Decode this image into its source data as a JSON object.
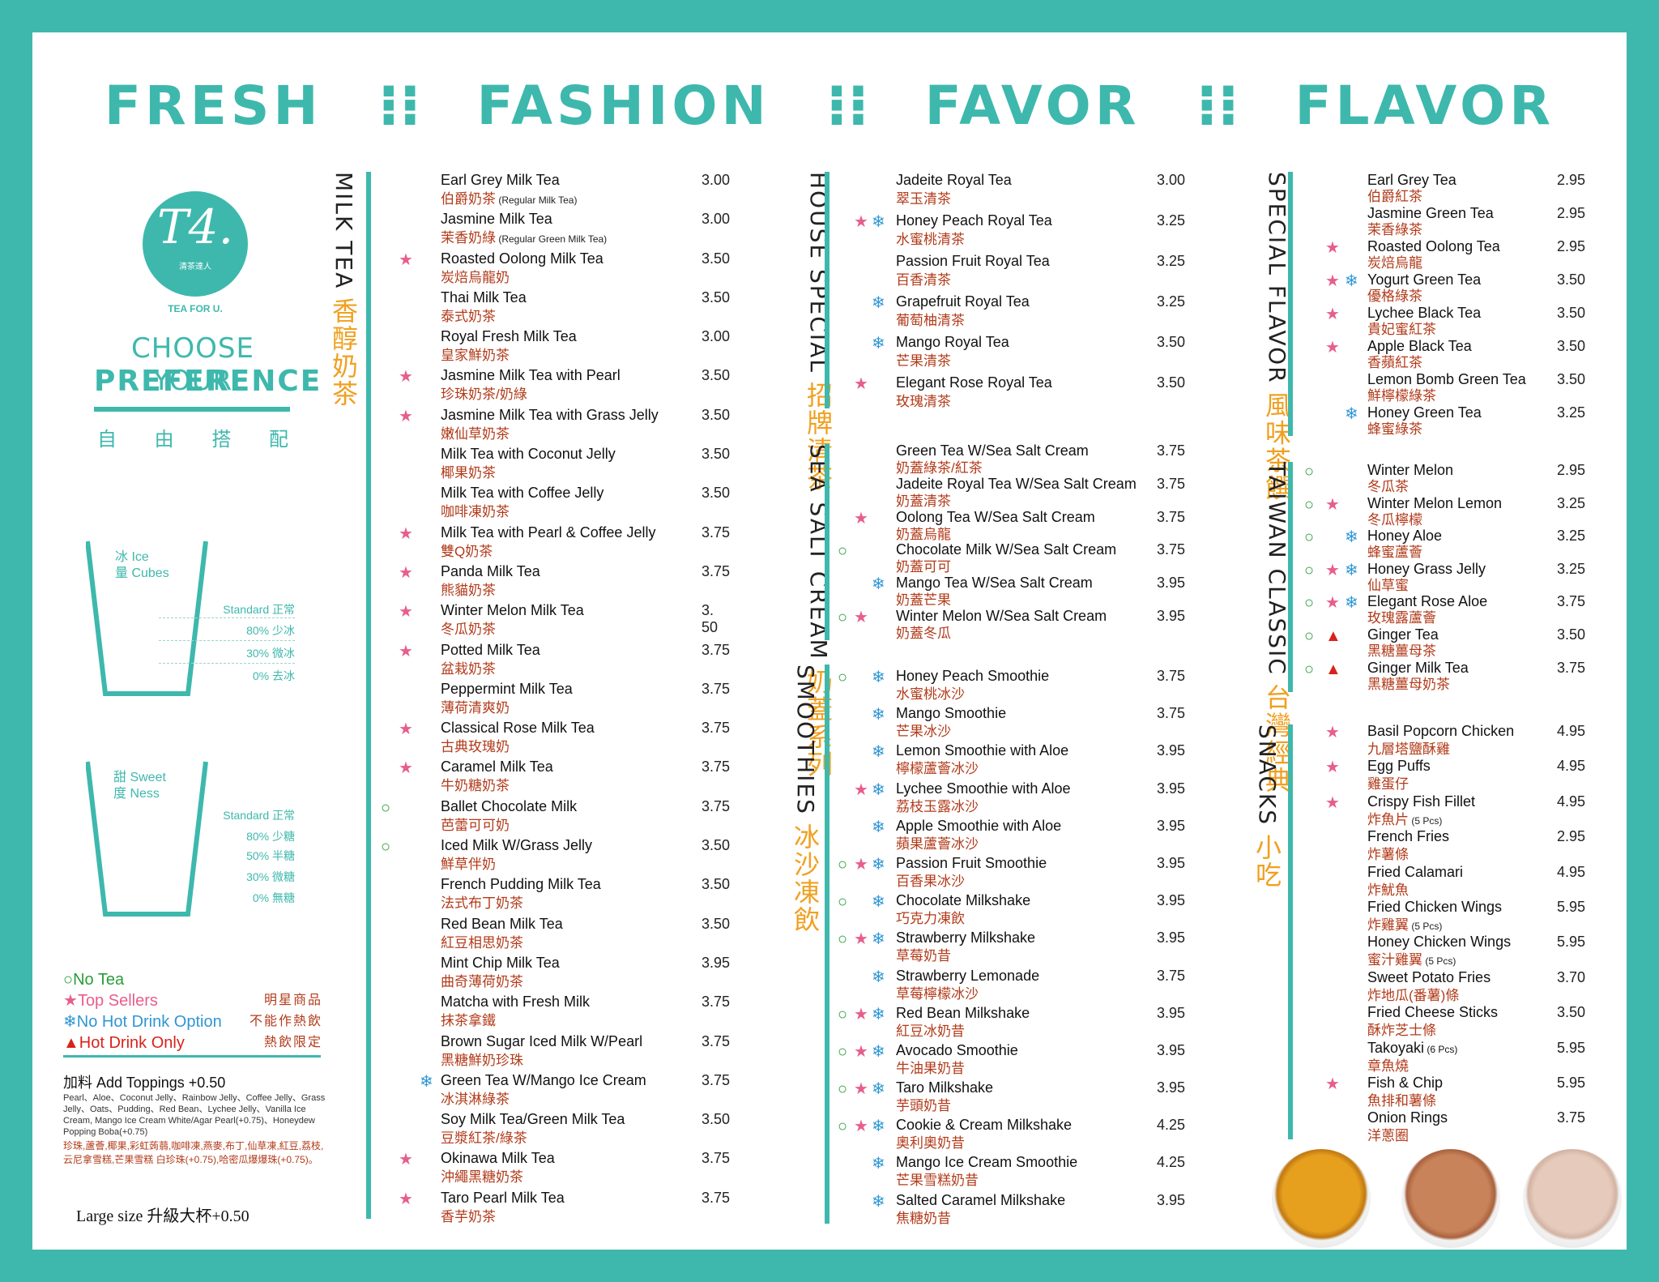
{
  "header": {
    "w1": "FRESH",
    "w2": "FASHION",
    "w3": "FAVOR",
    "w4": "FLAVOR",
    "sep": "⁝⁝"
  },
  "brand": {
    "logo": "T4.",
    "logo_zh": "清茶達人",
    "tea_for": "TEA FOR U.",
    "choose1": "CHOOSE YOUR",
    "choose2": "PREFERENCE",
    "free": [
      "自",
      "由",
      "搭",
      "配"
    ]
  },
  "ice": {
    "label1": "冰 Ice",
    "label2": "量 Cubes",
    "levels": [
      "Standard 正常",
      "80% 少冰",
      "30% 微冰",
      "0% 去冰"
    ]
  },
  "sweet": {
    "label1": "甜 Sweet",
    "label2": "度 Ness",
    "levels": [
      "Standard 正常",
      "80% 少糖",
      "50% 半糖",
      "30% 微糖",
      "0% 無糖"
    ]
  },
  "legend": [
    {
      "icon": "○",
      "cls": "c-o",
      "text": "No Tea",
      "zh": ""
    },
    {
      "icon": "★",
      "cls": "c-s",
      "text": "Top Sellers",
      "zh": "明星商品"
    },
    {
      "icon": "❄",
      "cls": "c-n",
      "text": "No Hot Drink Option",
      "zh": "不能作熱飲"
    },
    {
      "icon": "▲",
      "cls": "c-h",
      "text": "Hot Drink Only",
      "zh": "熱飲限定"
    }
  ],
  "toppings": {
    "title": "加料 Add Toppings +0.50",
    "en": "Pearl、Aloe、Coconut Jelly、Rainbow Jelly、Coffee Jelly、Grass Jelly、Oats、Pudding、Red Bean、Lychee Jelly、Vanilla Ice Cream, Mango Ice Cream White/Agar Pearl(+0.75)、Honeydew Popping Boba(+0.75)",
    "zh": "珍珠,蘆薈,椰果,彩虹蒟蒻,咖啡凍,燕麥,布丁,仙草凍,紅豆,荔枝,云尼拿雪糕,芒果雪糕 白珍珠(+0.75),哈密瓜爆爆珠(+0.75)。"
  },
  "large": "Large size 升級大杯+0.50",
  "titles": {
    "milk_en": "MILK TEA",
    "milk_zh": "香醇奶茶",
    "house_en": "HOUSE SPECIAL",
    "house_zh": "招牌清茶",
    "salt_en": "SEA SALT CREAM",
    "salt_zh": "奶蓋系列",
    "smooth_en": "SMOOTHIES",
    "smooth_zh": "冰沙凍飲",
    "flavor_en": "SPECIAL FLAVOR",
    "flavor_zh": "風味茶饌",
    "taiwan_en": "TAIWAN CLASSIC",
    "taiwan_zh": "台灣經典",
    "snacks_en": "SNACKS",
    "snacks_zh": "小吃"
  },
  "milk": [
    {
      "i": "",
      "n": "Earl Grey Milk Tea",
      "z": "伯爵奶茶",
      "zs": "(Regular Milk Tea)",
      "p": "3.00"
    },
    {
      "i": "",
      "n": "Jasmine Milk Tea",
      "z": "茉香奶綠",
      "zs": "(Regular Green Milk Tea)",
      "p": "3.00"
    },
    {
      "i": "s",
      "n": "Roasted Oolong Milk Tea",
      "z": "炭焙烏龍奶",
      "p": "3.50"
    },
    {
      "i": "",
      "n": "Thai Milk Tea",
      "z": "泰式奶茶",
      "p": "3.50"
    },
    {
      "i": "",
      "n": "Royal Fresh Milk Tea",
      "z": "皇家鮮奶茶",
      "p": "3.00"
    },
    {
      "i": "s",
      "n": "Jasmine Milk Tea with Pearl",
      "z": "珍珠奶茶/奶綠",
      "p": "3.50"
    },
    {
      "i": "s",
      "n": "Jasmine Milk Tea with Grass Jelly",
      "z": "嫩仙草奶茶",
      "p": "3.50"
    },
    {
      "i": "",
      "n": "Milk Tea with Coconut Jelly",
      "z": "椰果奶茶",
      "p": "3.50"
    },
    {
      "i": "",
      "n": "Milk Tea with Coffee Jelly",
      "z": "咖啡凍奶茶",
      "p": "3.50"
    },
    {
      "i": "s",
      "n": "Milk Tea with Pearl & Coffee Jelly",
      "z": "雙Q奶茶",
      "p": "3.75"
    },
    {
      "i": "s",
      "n": "Panda Milk Tea",
      "z": "熊貓奶茶",
      "p": "3.75"
    },
    {
      "i": "s",
      "n": "Winter Melon Milk Tea",
      "z": "冬瓜奶茶",
      "p": "3. 50"
    },
    {
      "i": "s",
      "n": "Potted Milk Tea",
      "z": "盆栽奶茶",
      "p": "3.75"
    },
    {
      "i": "",
      "n": "Peppermint Milk Tea",
      "z": "薄荷清爽奶",
      "p": "3.75"
    },
    {
      "i": "s",
      "n": "Classical Rose Milk Tea",
      "z": "古典玫瑰奶",
      "p": "3.75"
    },
    {
      "i": "s",
      "n": "Caramel Milk Tea",
      "z": "牛奶糖奶茶",
      "p": "3.75"
    },
    {
      "i": "o",
      "n": "Ballet Chocolate Milk",
      "z": "芭蕾可可奶",
      "p": "3.75"
    },
    {
      "i": "o",
      "n": "Iced Milk W/Grass Jelly",
      "z": "鮮草伴奶",
      "p": "3.50"
    },
    {
      "i": "",
      "n": "French Pudding Milk Tea",
      "z": "法式布丁奶茶",
      "p": "3.50"
    },
    {
      "i": "",
      "n": "Red Bean Milk Tea",
      "z": "紅豆相思奶茶",
      "p": "3.50"
    },
    {
      "i": "",
      "n": "Mint Chip Milk Tea",
      "z": "曲奇薄荷奶茶",
      "p": "3.95"
    },
    {
      "i": "",
      "n": "Matcha with Fresh Milk",
      "z": "抹茶拿鐵",
      "p": "3.75"
    },
    {
      "i": "",
      "n": "Brown Sugar Iced Milk W/Pearl",
      "z": "黑糖鮮奶珍珠",
      "p": "3.75"
    },
    {
      "i": "n",
      "n": "Green Tea W/Mango Ice Cream",
      "z": "冰淇淋綠茶",
      "p": "3.75"
    },
    {
      "i": "",
      "n": "Soy Milk Tea/Green Milk Tea",
      "z": "豆漿紅茶/綠茶",
      "p": "3.50"
    },
    {
      "i": "s",
      "n": "Okinawa Milk Tea",
      "z": "沖繩黑糖奶茶",
      "p": "3.75"
    },
    {
      "i": "s",
      "n": "Taro Pearl Milk Tea",
      "z": "香芋奶茶",
      "p": "3.75"
    }
  ],
  "house": [
    {
      "i": "",
      "n": "Jadeite Royal Tea",
      "z": "翠玉清茶",
      "p": "3.00"
    },
    {
      "i": "sn",
      "n": "Honey Peach Royal Tea",
      "z": "水蜜桃清茶",
      "p": "3.25"
    },
    {
      "i": "",
      "n": "Passion Fruit Royal  Tea",
      "z": "百香清茶",
      "p": "3.25"
    },
    {
      "i": "n",
      "n": "Grapefruit Royal Tea",
      "z": "葡萄柚清茶",
      "p": "3.25"
    },
    {
      "i": "n",
      "n": "Mango Royal Tea",
      "z": "芒果清茶",
      "p": "3.50"
    },
    {
      "i": "s",
      "n": "Elegant Rose Royal Tea",
      "z": "玫瑰清茶",
      "p": "3.50"
    }
  ],
  "salt": [
    {
      "i": "",
      "n": "Green Tea W/Sea Salt Cream",
      "z": "奶蓋綠茶/紅茶",
      "p": "3.75"
    },
    {
      "i": "",
      "n": "Jadeite Royal Tea W/Sea Salt Cream",
      "z": "奶蓋清茶",
      "p": "3.75"
    },
    {
      "i": "s",
      "n": "Oolong  Tea W/Sea Salt Cream",
      "z": "奶蓋烏龍",
      "p": "3.75"
    },
    {
      "i": "o",
      "n": "Chocolate Milk W/Sea Salt Cream",
      "z": "奶蓋可可",
      "p": "3.75"
    },
    {
      "i": "n",
      "n": "Mango Tea W/Sea Salt Cream",
      "z": "奶蓋芒果",
      "p": "3.95"
    },
    {
      "i": "os",
      "n": "Winter Melon W/Sea Salt Cream",
      "z": "奶蓋冬瓜",
      "p": "3.95"
    }
  ],
  "smooth": [
    {
      "i": "on",
      "n": "Honey Peach Smoothie",
      "z": "水蜜桃冰沙",
      "p": "3.75"
    },
    {
      "i": "n",
      "n": "Mango Smoothie",
      "z": "芒果冰沙",
      "p": "3.75"
    },
    {
      "i": "n",
      "n": "Lemon Smoothie with Aloe",
      "z": "檸檬蘆薈冰沙",
      "p": "3.95"
    },
    {
      "i": "sn",
      "n": "Lychee Smoothie with Aloe",
      "z": "荔枝玉露冰沙",
      "p": "3.95"
    },
    {
      "i": "n",
      "n": "Apple Smoothie with Aloe",
      "z": "蘋果蘆薈冰沙",
      "p": "3.95"
    },
    {
      "i": "osn",
      "n": "Passion Fruit Smoothie",
      "z": "百香果冰沙",
      "p": "3.95"
    },
    {
      "i": "on",
      "n": "Chocolate Milkshake",
      "z": "巧克力凍飲",
      "p": "3.95"
    },
    {
      "i": "osn",
      "n": "Strawberry Milkshake",
      "z": "草莓奶昔",
      "p": "3.95"
    },
    {
      "i": "n",
      "n": "Strawberry Lemonade",
      "z": "草莓檸檬冰沙",
      "p": "3.75"
    },
    {
      "i": "osn",
      "n": "Red Bean Milkshake",
      "z": "紅豆冰奶昔",
      "p": "3.95"
    },
    {
      "i": "osn",
      "n": "Avocado Smoothie",
      "z": "牛油果奶昔",
      "p": "3.95"
    },
    {
      "i": "osn",
      "n": "Taro Milkshake",
      "z": "芋頭奶昔",
      "p": "3.95"
    },
    {
      "i": "osn",
      "n": "Cookie & Cream Milkshake",
      "z": "奧利奧奶昔",
      "p": "4.25"
    },
    {
      "i": "n",
      "n": "Mango Ice Cream Smoothie",
      "z": "芒果雪糕奶昔",
      "p": "4.25"
    },
    {
      "i": "n",
      "n": "Salted Caramel Milkshake",
      "z": "焦糖奶昔",
      "p": "3.95"
    }
  ],
  "flavor": [
    {
      "i": "",
      "n": "Earl Grey Tea",
      "z": "伯爵紅茶",
      "p": "2.95"
    },
    {
      "i": "",
      "n": "Jasmine Green Tea",
      "z": "茉香綠茶",
      "p": "2.95"
    },
    {
      "i": "s",
      "n": "Roasted Oolong Tea",
      "z": "炭焙烏龍",
      "p": "2.95"
    },
    {
      "i": "sn",
      "n": "Yogurt Green Tea",
      "z": "優格綠茶",
      "p": "3.50"
    },
    {
      "i": "s",
      "n": "Lychee Black Tea",
      "z": "貴妃蜜紅茶",
      "p": "3.50"
    },
    {
      "i": "s",
      "n": "Apple Black Tea",
      "z": "香蘋紅茶",
      "p": "3.50"
    },
    {
      "i": "",
      "n": "Lemon Bomb Green Tea",
      "z": "鮮檸檬綠茶",
      "p": "3.50"
    },
    {
      "i": "n",
      "n": "Honey Green Tea",
      "z": "蜂蜜綠茶",
      "p": "3.25"
    }
  ],
  "taiwan": [
    {
      "i": "o",
      "n": "Winter Melon",
      "z": "冬瓜茶",
      "p": "2.95"
    },
    {
      "i": "os",
      "n": "Winter Melon Lemon",
      "z": "冬瓜檸檬",
      "p": "3.25"
    },
    {
      "i": "on",
      "n": "Honey Aloe",
      "z": "蜂蜜蘆薈",
      "p": "3.25"
    },
    {
      "i": "osn",
      "n": "Honey Grass Jelly",
      "z": "仙草蜜",
      "p": "3.25"
    },
    {
      "i": "osn",
      "n": "Elegant Rose Aloe",
      "z": "玫瑰露蘆薈",
      "p": "3.75"
    },
    {
      "i": "oh",
      "n": "Ginger Tea",
      "z": "黑糖薑母茶",
      "p": "3.50"
    },
    {
      "i": "oh",
      "n": "Ginger Milk Tea",
      "z": "黑糖薑母奶茶",
      "p": "3.75"
    }
  ],
  "snacks": [
    {
      "i": "s",
      "n": "Basil Popcorn Chicken",
      "z": "九層塔鹽酥雞",
      "p": "4.95"
    },
    {
      "i": "s",
      "n": "Egg Puffs",
      "z": "雞蛋仔",
      "p": "4.95"
    },
    {
      "i": "s",
      "n": "Crispy Fish Fillet",
      "z": "炸魚片",
      "zs": "(5 Pcs)",
      "p": "4.95"
    },
    {
      "i": "",
      "n": "French Fries",
      "z": "炸薯條",
      "p": "2.95"
    },
    {
      "i": "",
      "n": "Fried Calamari",
      "z": "炸魷魚",
      "p": "4.95"
    },
    {
      "i": "",
      "n": "Fried Chicken Wings",
      "z": "炸雞翼",
      "zs": "(5 Pcs)",
      "p": "5.95"
    },
    {
      "i": "",
      "n": "Honey Chicken Wings",
      "z": "蜜汁雞翼",
      "zs": "(5 Pcs)",
      "p": "5.95"
    },
    {
      "i": "",
      "n": "Sweet Potato Fries",
      "z": "炸地瓜(番薯)條",
      "p": "3.70"
    },
    {
      "i": "",
      "n": "Fried Cheese Sticks",
      "z": "酥炸芝士條",
      "p": "3.50"
    },
    {
      "i": "",
      "n": "Takoyaki",
      "ns": "(6 Pcs)",
      "z": "章魚燒",
      "p": "5.95"
    },
    {
      "i": "s",
      "n": "Fish & Chip",
      "z": "魚排和薯條",
      "p": "5.95"
    },
    {
      "i": "",
      "n": "Onion Rings",
      "z": "洋蔥圈",
      "p": "3.75"
    }
  ],
  "colors": {
    "teal": "#3eb8ad",
    "orange": "#f0a020",
    "red": "#b23b1a"
  }
}
